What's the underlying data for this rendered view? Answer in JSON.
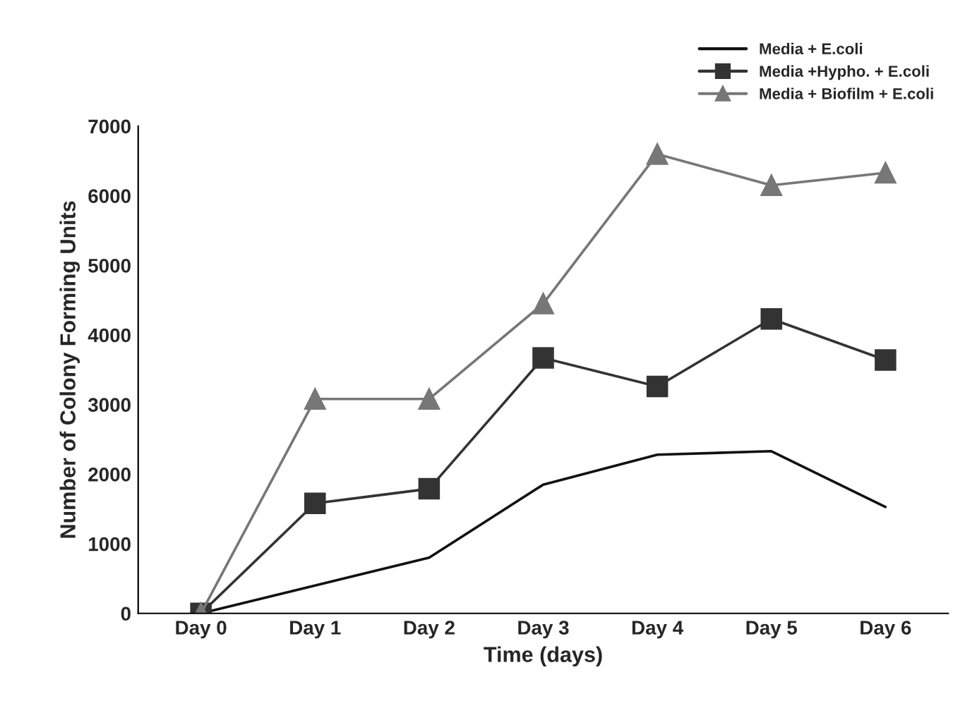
{
  "chart_data": {
    "type": "line",
    "xlabel": "Time (days)",
    "ylabel": "Number of Colony Forming Units",
    "categories": [
      "Day 0",
      "Day 1",
      "Day 2",
      "Day 3",
      "Day 4",
      "Day 5",
      "Day 6"
    ],
    "series": [
      {
        "name": "Media + E.coli",
        "color": "#111111",
        "marker": "none",
        "values": [
          0,
          400,
          800,
          1850,
          2280,
          2330,
          1530
        ]
      },
      {
        "name": "Media +Hypho. + E.coli",
        "color": "#333333",
        "marker": "square",
        "values": [
          0,
          1580,
          1790,
          3670,
          3260,
          4230,
          3640
        ]
      },
      {
        "name": "Media + Biofilm + E.coli",
        "color": "#777777",
        "marker": "triangle",
        "values": [
          0,
          3080,
          3080,
          4450,
          6600,
          6150,
          6330
        ]
      }
    ],
    "ylim": [
      0,
      7000
    ],
    "yticks": [
      0,
      1000,
      2000,
      3000,
      4000,
      5000,
      6000,
      7000
    ],
    "grid": false,
    "legend": "top right",
    "line_style": "solid"
  }
}
